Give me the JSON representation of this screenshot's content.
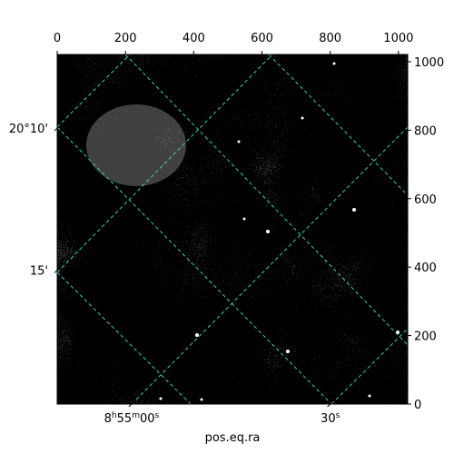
{
  "chart_data": {
    "type": "image",
    "xlabel": "pos.eq.ra",
    "xlim": [
      0,
      1027
    ],
    "ylim": [
      0,
      1021
    ],
    "xticks": [
      0,
      200,
      400,
      600,
      800,
      1000
    ],
    "yticks": [
      0,
      200,
      400,
      600,
      800,
      1000
    ],
    "ra_ticks": [
      {
        "value": 218,
        "label": "8h55m00s"
      },
      {
        "value": 800,
        "label": "30s"
      }
    ],
    "dec_ticks": [
      {
        "value": 806,
        "label": "20°10'"
      },
      {
        "value": 391,
        "label": "15'"
      }
    ]
  }
}
